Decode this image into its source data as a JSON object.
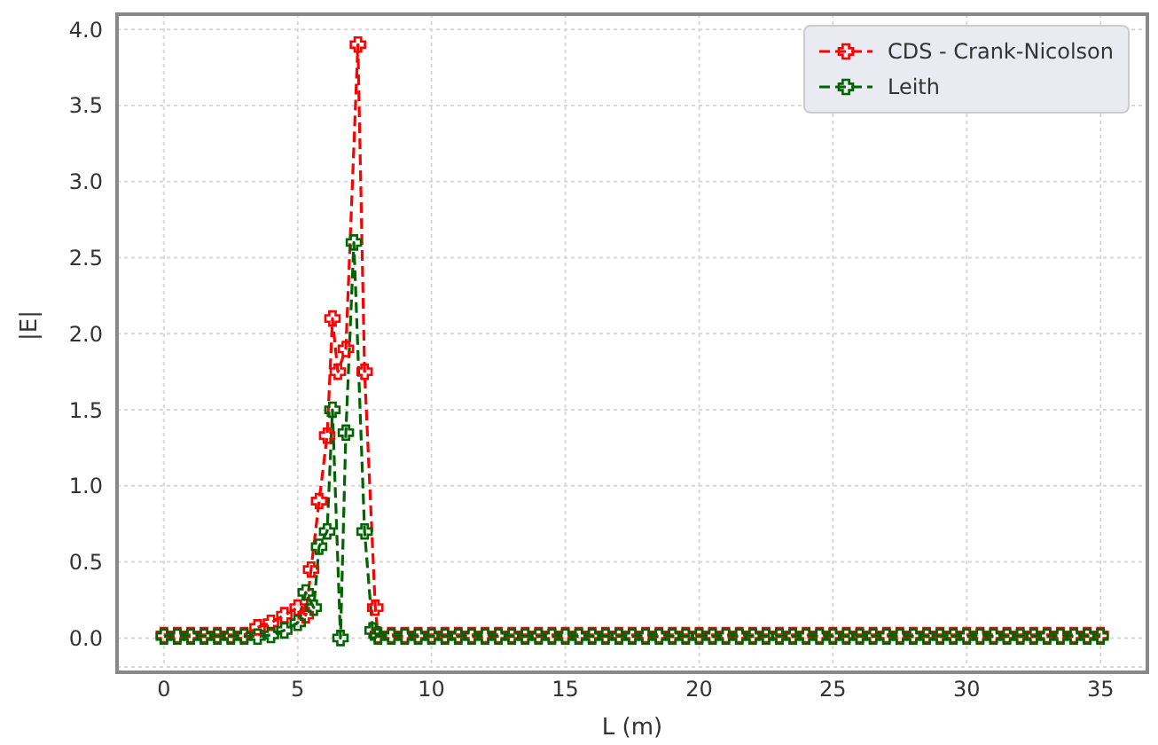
{
  "chart_data": {
    "type": "line",
    "xlabel": "L (m)",
    "ylabel": "|E|",
    "xlim": [
      -1.75,
      36.75
    ],
    "xticks": [
      0,
      5,
      10,
      15,
      20,
      25,
      30,
      35
    ],
    "ylim": [
      -0.19,
      4.1
    ],
    "yticks": [
      {
        "value": 0,
        "label": "0.0"
      },
      {
        "value": 0.5,
        "label": "0.5"
      },
      {
        "value": 1,
        "label": "1.0"
      },
      {
        "value": 1.5,
        "label": "1.5"
      },
      {
        "value": 2,
        "label": "2.0"
      },
      {
        "value": 2.5,
        "label": "2.5"
      },
      {
        "value": 3,
        "label": "3.0"
      },
      {
        "value": 3.5,
        "label": "3.5"
      },
      {
        "value": 4,
        "label": "4.0"
      }
    ],
    "grid": true,
    "legend": "top right",
    "marker": "cross",
    "line_style": "dashed",
    "series": [
      {
        "name": "CDS - Crank-Nicolson",
        "color": "#ff0000",
        "x": [
          0,
          0.5,
          1,
          1.5,
          2,
          2.5,
          3,
          3.5,
          4,
          4.5,
          5,
          5.3,
          5.5,
          5.8,
          6.1,
          6.3,
          6.5,
          6.8,
          7.25,
          7.5,
          7.9,
          8,
          8.5,
          9,
          9.5,
          10,
          10.5,
          11,
          11.5,
          12,
          12.5,
          13,
          13.5,
          14,
          14.5,
          15,
          15.5,
          16,
          16.5,
          17,
          17.5,
          18,
          18.5,
          19,
          19.5,
          20,
          20.5,
          21,
          21.5,
          22,
          22.5,
          23,
          23.5,
          24,
          24.5,
          25,
          25.5,
          26,
          26.5,
          27,
          27.5,
          28,
          28.5,
          29,
          29.5,
          30,
          30.5,
          31,
          31.5,
          32,
          32.5,
          33,
          33.5,
          34,
          34.5,
          35
        ],
        "values": [
          0.02,
          0.02,
          0.02,
          0.02,
          0.02,
          0.02,
          0.02,
          0.07,
          0.1,
          0.15,
          0.2,
          0.15,
          0.45,
          0.9,
          1.33,
          2.1,
          1.75,
          1.9,
          3.9,
          1.75,
          0.2,
          0.02,
          0.02,
          0.02,
          0.02,
          0.02,
          0.02,
          0.02,
          0.02,
          0.02,
          0.02,
          0.02,
          0.02,
          0.02,
          0.02,
          0.02,
          0.02,
          0.02,
          0.02,
          0.02,
          0.02,
          0.02,
          0.02,
          0.02,
          0.02,
          0.02,
          0.02,
          0.02,
          0.02,
          0.02,
          0.02,
          0.02,
          0.02,
          0.02,
          0.02,
          0.02,
          0.02,
          0.02,
          0.02,
          0.02,
          0.02,
          0.02,
          0.02,
          0.02,
          0.02,
          0.02,
          0.02,
          0.02,
          0.02,
          0.02,
          0.02,
          0.02,
          0.02,
          0.02,
          0.02,
          0.02
        ]
      },
      {
        "name": "Leith",
        "color": "#006400",
        "x": [
          0,
          0.5,
          1,
          1.5,
          2,
          2.5,
          3,
          3.5,
          4,
          4.5,
          5,
          5.3,
          5.6,
          5.8,
          6.1,
          6.3,
          6.6,
          6.8,
          7.1,
          7.5,
          7.8,
          8,
          8.5,
          9,
          9.5,
          10,
          10.5,
          11,
          11.5,
          12,
          12.5,
          13,
          13.5,
          14,
          14.5,
          15,
          15.5,
          16,
          16.5,
          17,
          17.5,
          18,
          18.5,
          19,
          19.5,
          20,
          20.5,
          21,
          21.5,
          22,
          22.5,
          23,
          23.5,
          24,
          24.5,
          25,
          25.5,
          26,
          26.5,
          27,
          27.5,
          28,
          28.5,
          29,
          29.5,
          30,
          30.5,
          31,
          31.5,
          32,
          32.5,
          33,
          33.5,
          34,
          34.5,
          35
        ],
        "values": [
          0.01,
          0.01,
          0.01,
          0.01,
          0.01,
          0.01,
          0.01,
          0.01,
          0.02,
          0.05,
          0.1,
          0.3,
          0.2,
          0.6,
          0.7,
          1.5,
          0,
          1.35,
          2.6,
          0.7,
          0.05,
          0.01,
          0.01,
          0.01,
          0.01,
          0.01,
          0.01,
          0.01,
          0.01,
          0.01,
          0.01,
          0.01,
          0.01,
          0.01,
          0.01,
          0.01,
          0.01,
          0.01,
          0.01,
          0.01,
          0.01,
          0.01,
          0.01,
          0.01,
          0.01,
          0.01,
          0.01,
          0.01,
          0.01,
          0.01,
          0.01,
          0.01,
          0.01,
          0.01,
          0.01,
          0.01,
          0.01,
          0.01,
          0.01,
          0.01,
          0.01,
          0.01,
          0.01,
          0.01,
          0.01,
          0.01,
          0.01,
          0.01,
          0.01,
          0.01,
          0.01,
          0.01,
          0.01,
          0.01,
          0.01,
          0.01
        ]
      }
    ]
  }
}
